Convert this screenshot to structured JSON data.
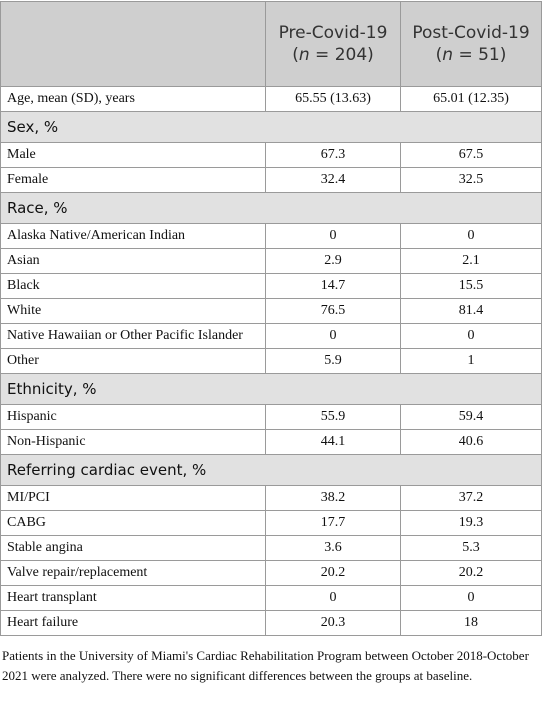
{
  "table": {
    "columns": [
      {
        "name": "Pre-Covid-19",
        "sample": [
          "(",
          "n",
          " = 204)"
        ]
      },
      {
        "name": "Post-Covid-19",
        "sample": [
          "(",
          "n",
          " = 51)"
        ]
      }
    ],
    "sections": [
      {
        "rows": [
          [
            "Age, mean (SD), years",
            "65.55 (13.63)",
            "65.01 (12.35)"
          ]
        ]
      },
      {
        "title": "Sex, %",
        "rows": [
          [
            "Male",
            "67.3",
            "67.5"
          ],
          [
            "Female",
            "32.4",
            "32.5"
          ]
        ]
      },
      {
        "title": "Race, %",
        "rows": [
          [
            "Alaska Native/American Indian",
            "0",
            "0"
          ],
          [
            "Asian",
            "2.9",
            "2.1"
          ],
          [
            "Black",
            "14.7",
            "15.5"
          ],
          [
            "White",
            "76.5",
            "81.4"
          ],
          [
            "Native Hawaiian or Other Pacific Islander",
            "0",
            "0"
          ],
          [
            "Other",
            "5.9",
            "1"
          ]
        ]
      },
      {
        "title": "Ethnicity, %",
        "rows": [
          [
            "Hispanic",
            "55.9",
            "59.4"
          ],
          [
            "Non-Hispanic",
            "44.1",
            "40.6"
          ]
        ]
      },
      {
        "title": "Referring cardiac event, %",
        "rows": [
          [
            "MI/PCI",
            "38.2",
            "37.2"
          ],
          [
            "CABG",
            "17.7",
            "19.3"
          ],
          [
            "Stable angina",
            "3.6",
            "5.3"
          ],
          [
            "Valve repair/replacement",
            "20.2",
            "20.2"
          ],
          [
            "Heart transplant",
            "0",
            "0"
          ],
          [
            "Heart failure",
            "20.3",
            "18"
          ]
        ]
      }
    ]
  },
  "footnote": "Patients in the University of Miami's Cardiac Rehabilitation Program between October 2018-October 2021 were analyzed. There were no significant differences between the groups at baseline."
}
